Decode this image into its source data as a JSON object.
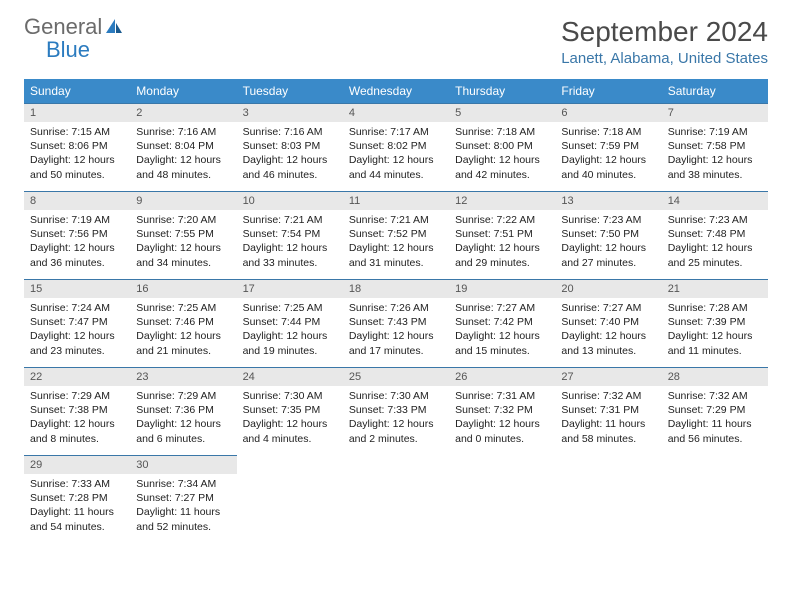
{
  "logo": {
    "text1": "General",
    "text2": "Blue"
  },
  "title": "September 2024",
  "location": "Lanett, Alabama, United States",
  "colors": {
    "header_bg": "#3a8ac9",
    "border": "#3a77a8",
    "daynum_bg": "#e8e8e8",
    "logo_gray": "#6b6b6b",
    "logo_blue": "#2b7bbf"
  },
  "weekdays": [
    "Sunday",
    "Monday",
    "Tuesday",
    "Wednesday",
    "Thursday",
    "Friday",
    "Saturday"
  ],
  "days": [
    {
      "n": 1,
      "sunrise": "7:15 AM",
      "sunset": "8:06 PM",
      "daylight": "12 hours and 50 minutes."
    },
    {
      "n": 2,
      "sunrise": "7:16 AM",
      "sunset": "8:04 PM",
      "daylight": "12 hours and 48 minutes."
    },
    {
      "n": 3,
      "sunrise": "7:16 AM",
      "sunset": "8:03 PM",
      "daylight": "12 hours and 46 minutes."
    },
    {
      "n": 4,
      "sunrise": "7:17 AM",
      "sunset": "8:02 PM",
      "daylight": "12 hours and 44 minutes."
    },
    {
      "n": 5,
      "sunrise": "7:18 AM",
      "sunset": "8:00 PM",
      "daylight": "12 hours and 42 minutes."
    },
    {
      "n": 6,
      "sunrise": "7:18 AM",
      "sunset": "7:59 PM",
      "daylight": "12 hours and 40 minutes."
    },
    {
      "n": 7,
      "sunrise": "7:19 AM",
      "sunset": "7:58 PM",
      "daylight": "12 hours and 38 minutes."
    },
    {
      "n": 8,
      "sunrise": "7:19 AM",
      "sunset": "7:56 PM",
      "daylight": "12 hours and 36 minutes."
    },
    {
      "n": 9,
      "sunrise": "7:20 AM",
      "sunset": "7:55 PM",
      "daylight": "12 hours and 34 minutes."
    },
    {
      "n": 10,
      "sunrise": "7:21 AM",
      "sunset": "7:54 PM",
      "daylight": "12 hours and 33 minutes."
    },
    {
      "n": 11,
      "sunrise": "7:21 AM",
      "sunset": "7:52 PM",
      "daylight": "12 hours and 31 minutes."
    },
    {
      "n": 12,
      "sunrise": "7:22 AM",
      "sunset": "7:51 PM",
      "daylight": "12 hours and 29 minutes."
    },
    {
      "n": 13,
      "sunrise": "7:23 AM",
      "sunset": "7:50 PM",
      "daylight": "12 hours and 27 minutes."
    },
    {
      "n": 14,
      "sunrise": "7:23 AM",
      "sunset": "7:48 PM",
      "daylight": "12 hours and 25 minutes."
    },
    {
      "n": 15,
      "sunrise": "7:24 AM",
      "sunset": "7:47 PM",
      "daylight": "12 hours and 23 minutes."
    },
    {
      "n": 16,
      "sunrise": "7:25 AM",
      "sunset": "7:46 PM",
      "daylight": "12 hours and 21 minutes."
    },
    {
      "n": 17,
      "sunrise": "7:25 AM",
      "sunset": "7:44 PM",
      "daylight": "12 hours and 19 minutes."
    },
    {
      "n": 18,
      "sunrise": "7:26 AM",
      "sunset": "7:43 PM",
      "daylight": "12 hours and 17 minutes."
    },
    {
      "n": 19,
      "sunrise": "7:27 AM",
      "sunset": "7:42 PM",
      "daylight": "12 hours and 15 minutes."
    },
    {
      "n": 20,
      "sunrise": "7:27 AM",
      "sunset": "7:40 PM",
      "daylight": "12 hours and 13 minutes."
    },
    {
      "n": 21,
      "sunrise": "7:28 AM",
      "sunset": "7:39 PM",
      "daylight": "12 hours and 11 minutes."
    },
    {
      "n": 22,
      "sunrise": "7:29 AM",
      "sunset": "7:38 PM",
      "daylight": "12 hours and 8 minutes."
    },
    {
      "n": 23,
      "sunrise": "7:29 AM",
      "sunset": "7:36 PM",
      "daylight": "12 hours and 6 minutes."
    },
    {
      "n": 24,
      "sunrise": "7:30 AM",
      "sunset": "7:35 PM",
      "daylight": "12 hours and 4 minutes."
    },
    {
      "n": 25,
      "sunrise": "7:30 AM",
      "sunset": "7:33 PM",
      "daylight": "12 hours and 2 minutes."
    },
    {
      "n": 26,
      "sunrise": "7:31 AM",
      "sunset": "7:32 PM",
      "daylight": "12 hours and 0 minutes."
    },
    {
      "n": 27,
      "sunrise": "7:32 AM",
      "sunset": "7:31 PM",
      "daylight": "11 hours and 58 minutes."
    },
    {
      "n": 28,
      "sunrise": "7:32 AM",
      "sunset": "7:29 PM",
      "daylight": "11 hours and 56 minutes."
    },
    {
      "n": 29,
      "sunrise": "7:33 AM",
      "sunset": "7:28 PM",
      "daylight": "11 hours and 54 minutes."
    },
    {
      "n": 30,
      "sunrise": "7:34 AM",
      "sunset": "7:27 PM",
      "daylight": "11 hours and 52 minutes."
    }
  ],
  "labels": {
    "sunrise": "Sunrise:",
    "sunset": "Sunset:",
    "daylight": "Daylight:"
  },
  "layout": {
    "start_weekday": 0,
    "total_cells": 35
  }
}
